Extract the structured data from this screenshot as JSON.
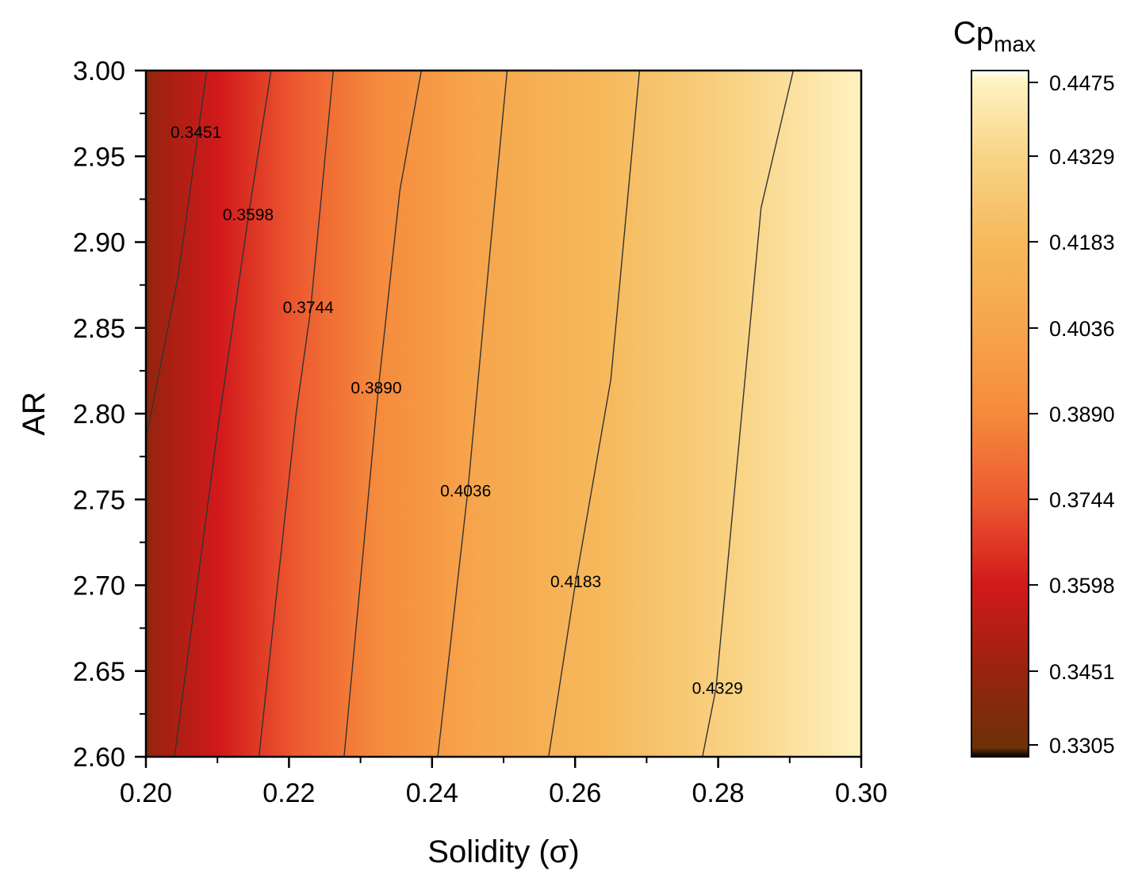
{
  "chart_data": {
    "type": "heatmap",
    "subtype": "filled-contour",
    "title": "",
    "xlabel": "Solidity (σ)",
    "ylabel": "AR",
    "xlim": [
      0.2,
      0.3
    ],
    "ylim": [
      2.6,
      3.0
    ],
    "x_ticks": [
      "0.20",
      "0.22",
      "0.24",
      "0.26",
      "0.28",
      "0.30"
    ],
    "y_ticks": [
      "2.60",
      "2.65",
      "2.70",
      "2.75",
      "2.80",
      "2.85",
      "2.90",
      "2.95",
      "3.00"
    ],
    "colorbar": {
      "title_main": "Cp",
      "title_sub": "max",
      "range": [
        0.3305,
        0.4475
      ],
      "tick_labels": [
        "0.3305",
        "0.3451",
        "0.3598",
        "0.3744",
        "0.3890",
        "0.4036",
        "0.4183",
        "0.4329",
        "0.4475"
      ],
      "stops": [
        {
          "value": 0.3305,
          "color": "#000000"
        },
        {
          "value": 0.332,
          "color": "#6b3208"
        },
        {
          "value": 0.3451,
          "color": "#99230f"
        },
        {
          "value": 0.3598,
          "color": "#d2191b"
        },
        {
          "value": 0.3744,
          "color": "#ec5a30"
        },
        {
          "value": 0.389,
          "color": "#f58a3c"
        },
        {
          "value": 0.4036,
          "color": "#f6a54c"
        },
        {
          "value": 0.4183,
          "color": "#f6b95c"
        },
        {
          "value": 0.4329,
          "color": "#f8d486"
        },
        {
          "value": 0.446,
          "color": "#fff4c4"
        },
        {
          "value": 0.4475,
          "color": "#ffffff"
        }
      ]
    },
    "contours": [
      {
        "level": "0.3451",
        "label": "0.3451",
        "points": [
          [
            0.2,
            2.785
          ],
          [
            0.2045,
            2.88
          ],
          [
            0.2085,
            3.0
          ]
        ],
        "label_at": [
          0.207,
          2.964
        ]
      },
      {
        "level": "0.3598",
        "label": "0.3598",
        "points": [
          [
            0.204,
            2.6
          ],
          [
            0.21,
            2.79
          ],
          [
            0.2145,
            2.92
          ],
          [
            0.2175,
            3.0
          ]
        ],
        "label_at": [
          0.2143,
          2.916
        ]
      },
      {
        "level": "0.3744",
        "label": "0.3744",
        "points": [
          [
            0.2158,
            2.6
          ],
          [
            0.221,
            2.8
          ],
          [
            0.223,
            2.86
          ],
          [
            0.2262,
            3.0
          ]
        ],
        "label_at": [
          0.2227,
          2.862
        ]
      },
      {
        "level": "0.3890",
        "label": "0.3890",
        "points": [
          [
            0.2277,
            2.6
          ],
          [
            0.2325,
            2.815
          ],
          [
            0.2355,
            2.93
          ],
          [
            0.2385,
            3.0
          ]
        ],
        "label_at": [
          0.2322,
          2.815
        ]
      },
      {
        "level": "0.4036",
        "label": "0.4036",
        "points": [
          [
            0.2408,
            2.6
          ],
          [
            0.245,
            2.755
          ],
          [
            0.248,
            2.89
          ],
          [
            0.2505,
            3.0
          ]
        ],
        "label_at": [
          0.2447,
          2.755
        ]
      },
      {
        "level": "0.4183",
        "label": "0.4183",
        "points": [
          [
            0.2563,
            2.6
          ],
          [
            0.26,
            2.7
          ],
          [
            0.265,
            2.82
          ],
          [
            0.269,
            3.0
          ]
        ],
        "label_at": [
          0.2601,
          2.702
        ]
      },
      {
        "level": "0.4329",
        "label": "0.4329",
        "points": [
          [
            0.2778,
            2.6
          ],
          [
            0.2797,
            2.64
          ],
          [
            0.286,
            2.92
          ],
          [
            0.2905,
            3.0
          ]
        ],
        "label_at": [
          0.2799,
          2.64
        ]
      }
    ]
  }
}
